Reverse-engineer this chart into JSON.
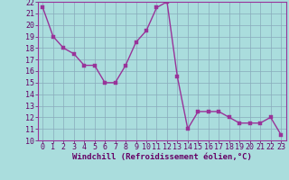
{
  "x": [
    0,
    1,
    2,
    3,
    4,
    5,
    6,
    7,
    8,
    9,
    10,
    11,
    12,
    13,
    14,
    15,
    16,
    17,
    18,
    19,
    20,
    21,
    22,
    23
  ],
  "y": [
    21.5,
    19.0,
    18.0,
    17.5,
    16.5,
    16.5,
    15.0,
    15.0,
    16.5,
    18.5,
    19.5,
    21.5,
    22.0,
    15.5,
    11.0,
    12.5,
    12.5,
    12.5,
    12.0,
    11.5,
    11.5,
    11.5,
    12.0,
    10.5
  ],
  "line_color": "#993399",
  "marker_color": "#993399",
  "bg_color": "#aadddd",
  "grid_color": "#88aabb",
  "xlabel": "Windchill (Refroidissement éolien,°C)",
  "ylim": [
    10,
    22
  ],
  "xlim": [
    -0.5,
    23.5
  ],
  "yticks": [
    10,
    11,
    12,
    13,
    14,
    15,
    16,
    17,
    18,
    19,
    20,
    21,
    22
  ],
  "xticks": [
    0,
    1,
    2,
    3,
    4,
    5,
    6,
    7,
    8,
    9,
    10,
    11,
    12,
    13,
    14,
    15,
    16,
    17,
    18,
    19,
    20,
    21,
    22,
    23
  ],
  "label_color": "#660066",
  "axis_label_fontsize": 6.5,
  "tick_fontsize": 6.0,
  "marker_size": 2.5,
  "line_width": 1.0,
  "spine_color": "#993399"
}
